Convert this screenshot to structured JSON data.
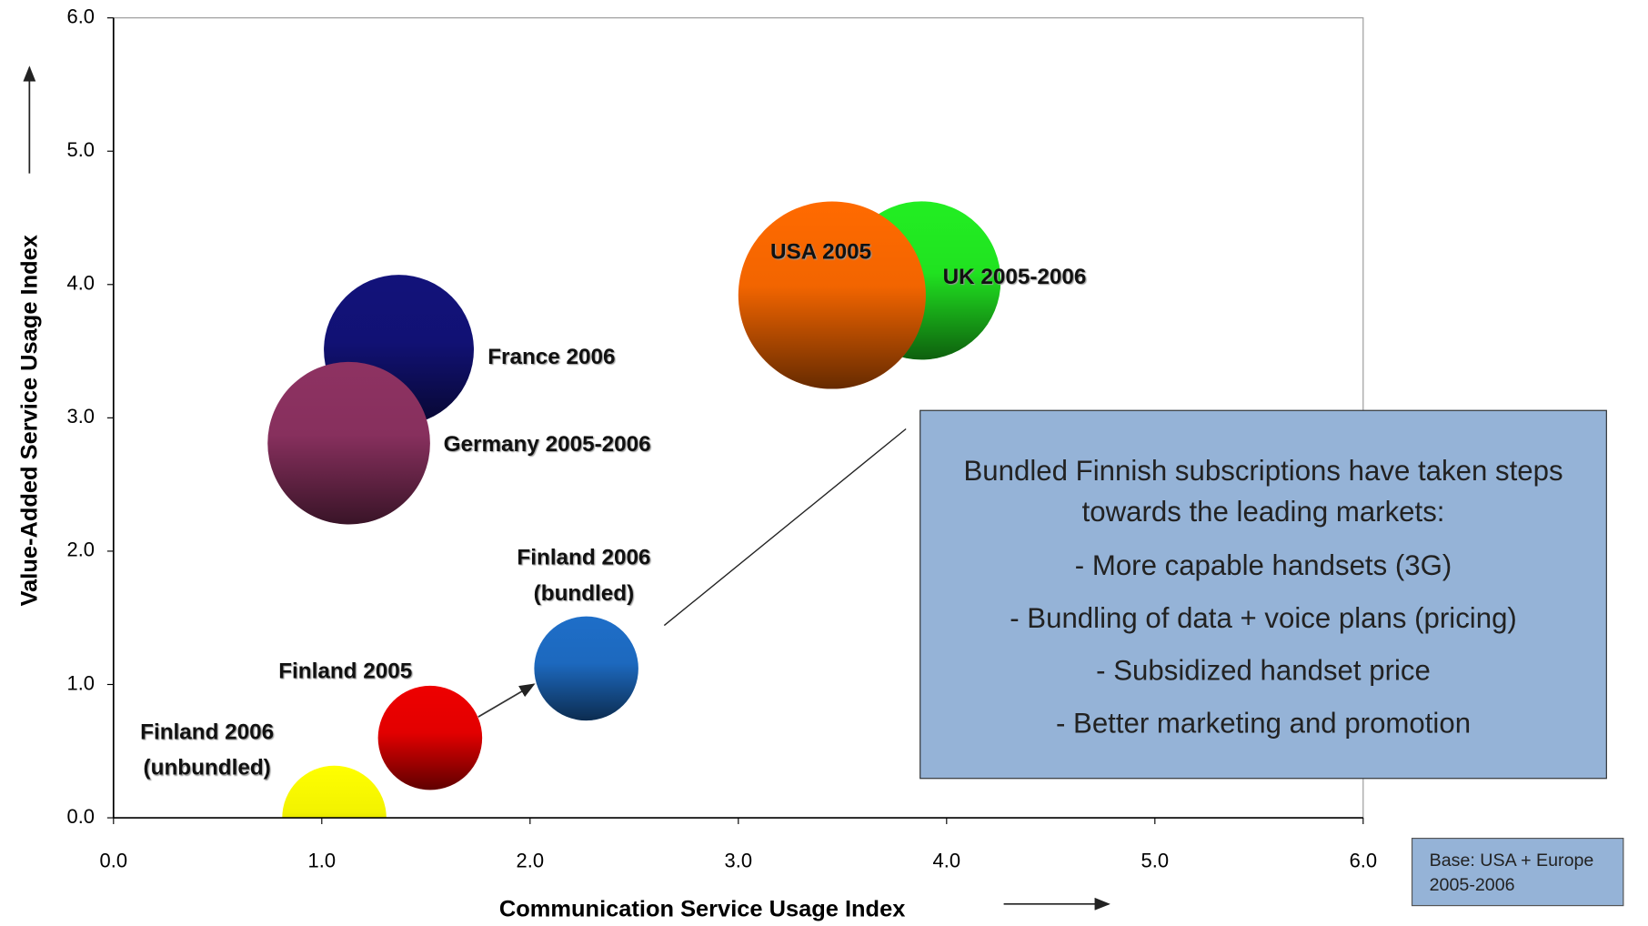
{
  "chart_data": {
    "type": "bubble",
    "xlabel": "Communication Service Usage Index",
    "ylabel": "Value-Added Service Usage Index",
    "xlim": [
      0,
      6
    ],
    "ylim": [
      0,
      6
    ],
    "xticks": [
      {
        "value": 0,
        "label": "0.0"
      },
      {
        "value": 1,
        "label": "1.0"
      },
      {
        "value": 2,
        "label": "2.0"
      },
      {
        "value": 3,
        "label": "3.0"
      },
      {
        "value": 4,
        "label": "4.0"
      },
      {
        "value": 5,
        "label": "5.0"
      },
      {
        "value": 6,
        "label": "6.0"
      }
    ],
    "yticks": [
      {
        "value": 0,
        "label": "0.0"
      },
      {
        "value": 1,
        "label": "1.0"
      },
      {
        "value": 2,
        "label": "2.0"
      },
      {
        "value": 3,
        "label": "3.0"
      },
      {
        "value": 4,
        "label": "4.0"
      },
      {
        "value": 5,
        "label": "5.0"
      },
      {
        "value": 6,
        "label": "6.0"
      }
    ],
    "series": [
      {
        "name": "France 2006",
        "color": "#12127a",
        "x": 1.37,
        "y": 3.51,
        "size": 0.36
      },
      {
        "name": "Germany 2005-2006",
        "color": "#8e3262",
        "x": 1.13,
        "y": 2.81,
        "size": 0.39
      },
      {
        "name": "UK 2005-2006",
        "color": "#22ee22",
        "x": 3.88,
        "y": 4.03,
        "size": 0.38
      },
      {
        "name": "USA 2005",
        "color": "#ff6a00",
        "x": 3.45,
        "y": 3.92,
        "size": 0.45
      },
      {
        "name": "Finland 2006 (bundled)",
        "color": "#1e6ec8",
        "x": 2.27,
        "y": 1.12,
        "size": 0.25
      },
      {
        "name": "Finland 2005",
        "color": "#ee0000",
        "x": 1.52,
        "y": 0.6,
        "size": 0.25
      },
      {
        "name": "Finland 2006 (unbundled)",
        "color": "#ffff00",
        "x": 1.06,
        "y": 0.0,
        "size": 0.25
      }
    ],
    "annotation": [
      "Bundled Finnish subscriptions have taken steps towards the leading markets:",
      "- More capable handsets (3G)",
      "- Bundling of data + voice plans (pricing)",
      "- Subsidized handset price",
      "- Better marketing and promotion"
    ],
    "note": "Base: USA + Europe 2005-2006"
  }
}
